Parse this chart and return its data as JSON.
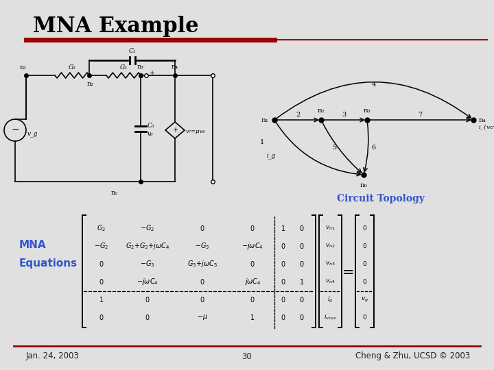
{
  "title": "MNA Example",
  "title_color": "#000000",
  "red_bar_color": "#990000",
  "background_color": "#e0e0e0",
  "footer_left": "Jan. 24, 2003",
  "footer_center": "30",
  "footer_right": "Cheng & Zhu, UCSD © 2003",
  "section_label1": "MNA",
  "section_label2": "Equations",
  "section_label_color": "#3355cc",
  "circuit_topology_label": "Circuit Topology",
  "circuit_topology_color": "#3355cc"
}
